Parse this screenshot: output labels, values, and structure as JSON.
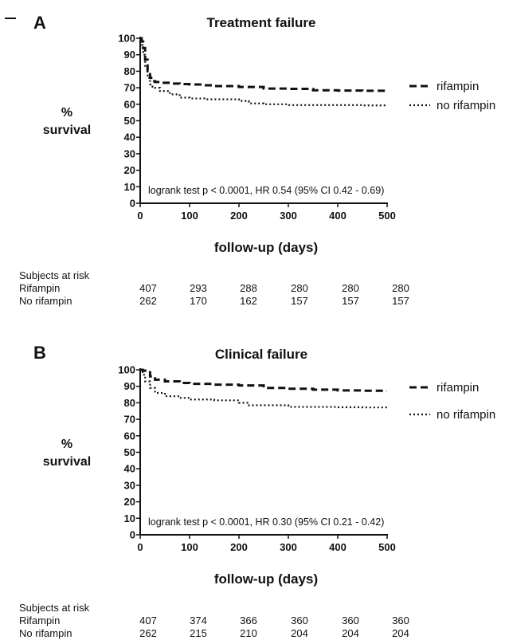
{
  "chart_data": [
    {
      "type": "line",
      "panel_label": "A",
      "title": "Treatment failure",
      "xlabel": "follow-up (days)",
      "ylabel_line1": "%",
      "ylabel_line2": "survival",
      "xlim": [
        0,
        500
      ],
      "ylim": [
        0,
        100
      ],
      "xticks": [
        0,
        100,
        200,
        300,
        400,
        500
      ],
      "yticks": [
        0,
        10,
        20,
        30,
        40,
        50,
        60,
        70,
        80,
        90,
        100
      ],
      "legend_position": "right",
      "annotation": "logrank test p < 0.0001, HR 0.54 (95% CI  0.42 - 0.69)",
      "series": [
        {
          "name": "rifampin",
          "style": "dashed",
          "x": [
            0,
            3,
            6,
            10,
            15,
            20,
            25,
            30,
            40,
            60,
            80,
            100,
            130,
            150,
            200,
            250,
            300,
            350,
            400,
            450,
            500
          ],
          "y": [
            100,
            98,
            94,
            87,
            80,
            76,
            74,
            73.5,
            73,
            72.5,
            72.2,
            72,
            71.5,
            71,
            70.5,
            69.5,
            69.3,
            68.5,
            68.3,
            68.2,
            68.2
          ]
        },
        {
          "name": "no rifampin",
          "style": "dotted",
          "x": [
            0,
            3,
            6,
            10,
            15,
            20,
            25,
            30,
            40,
            60,
            80,
            100,
            130,
            150,
            200,
            220,
            250,
            300,
            350,
            400,
            450,
            500
          ],
          "y": [
            100,
            96,
            90,
            82,
            76,
            72,
            70.5,
            70,
            68,
            66,
            64,
            63.5,
            63,
            63,
            62,
            60.5,
            60,
            59.5,
            59.5,
            59.5,
            59.3,
            59.3
          ]
        }
      ],
      "risk_table": {
        "title": "Subjects at risk",
        "timepoints": [
          0,
          100,
          200,
          300,
          400,
          500
        ],
        "rows": [
          {
            "label": "Rifampin",
            "values": [
              "407",
              "293",
              "288",
              "280",
              "280",
              "280"
            ]
          },
          {
            "label": "No rifampin",
            "values": [
              "262",
              "170",
              "162",
              "157",
              "157",
              "157"
            ]
          }
        ]
      }
    },
    {
      "type": "line",
      "panel_label": "B",
      "title": "Clinical failure",
      "xlabel": "follow-up (days)",
      "ylabel_line1": "%",
      "ylabel_line2": "survival",
      "xlim": [
        0,
        500
      ],
      "ylim": [
        0,
        100
      ],
      "xticks": [
        0,
        100,
        200,
        300,
        400,
        500
      ],
      "yticks": [
        0,
        10,
        20,
        30,
        40,
        50,
        60,
        70,
        80,
        90,
        100
      ],
      "legend_position": "right",
      "annotation": "logrank test p < 0.0001, HR 0.30 (95% CI  0.21 - 0.42)",
      "series": [
        {
          "name": "rifampin",
          "style": "dashed",
          "x": [
            0,
            5,
            10,
            20,
            30,
            50,
            80,
            100,
            150,
            200,
            250,
            300,
            350,
            400,
            450,
            500
          ],
          "y": [
            100,
            99.5,
            98.5,
            96,
            94,
            93,
            92,
            91.5,
            91,
            90.5,
            89,
            88.5,
            88,
            87.5,
            87.3,
            87.3
          ]
        },
        {
          "name": "no rifampin",
          "style": "dotted",
          "x": [
            0,
            5,
            10,
            20,
            30,
            50,
            80,
            100,
            150,
            200,
            220,
            250,
            300,
            350,
            400,
            450,
            500
          ],
          "y": [
            100,
            97,
            93,
            89,
            86,
            84,
            83,
            82,
            81.5,
            80,
            78.5,
            78.5,
            77.5,
            77.5,
            77.3,
            77.2,
            77.2
          ]
        }
      ],
      "risk_table": {
        "title": "Subjects at risk",
        "timepoints": [
          0,
          100,
          200,
          300,
          400,
          500
        ],
        "rows": [
          {
            "label": "Rifampin",
            "values": [
              "407",
              "374",
              "366",
              "360",
              "360",
              "360"
            ]
          },
          {
            "label": "No rifampin",
            "values": [
              "262",
              "215",
              "210",
              "204",
              "204",
              "204"
            ]
          }
        ]
      }
    }
  ]
}
